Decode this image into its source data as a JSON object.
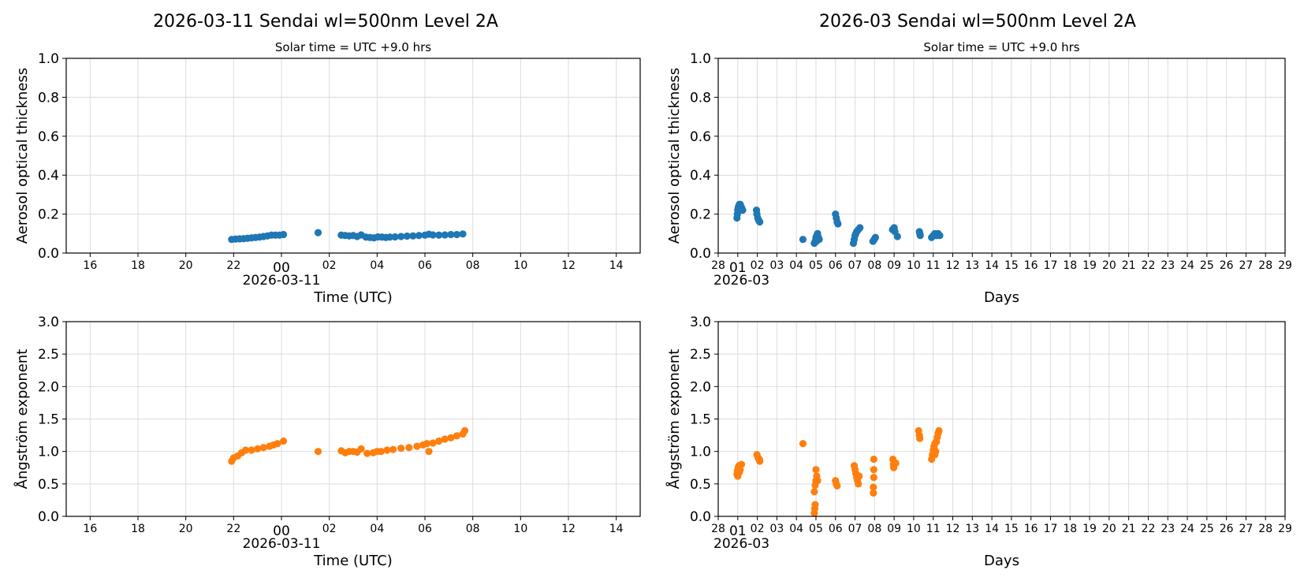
{
  "colors": {
    "aot": "#1f77b4",
    "angstrom": "#ff7f0e",
    "grid": "#dcdcdc"
  },
  "chart_data": [
    {
      "type": "scatter",
      "title": "2026-03-11  Sendai  wl=500nm  Level 2A",
      "subtitle": "Solar time = UTC +9.0 hrs",
      "xlabel": "Time (UTC)",
      "ylabel": "Aerosol optical thickness",
      "xlim": [
        "2026-03-10T15:00",
        "2026-03-11T15:00"
      ],
      "ylim": [
        0,
        1.0
      ],
      "yticks": [
        "0.0",
        "0.2",
        "0.4",
        "0.6",
        "0.8",
        "1.0"
      ],
      "xticks": [
        "16",
        "18",
        "20",
        "22",
        "00",
        "02",
        "04",
        "06",
        "08",
        "10",
        "12",
        "14"
      ],
      "xtick_date_label": "2026-03-11",
      "grid": true,
      "color": "#1f77b4",
      "points": [
        [
          "2026-03-10T21:55",
          0.07
        ],
        [
          "2026-03-10T22:05",
          0.072
        ],
        [
          "2026-03-10T22:15",
          0.073
        ],
        [
          "2026-03-10T22:25",
          0.074
        ],
        [
          "2026-03-10T22:35",
          0.076
        ],
        [
          "2026-03-10T22:45",
          0.078
        ],
        [
          "2026-03-10T22:55",
          0.08
        ],
        [
          "2026-03-10T23:05",
          0.082
        ],
        [
          "2026-03-10T23:15",
          0.085
        ],
        [
          "2026-03-10T23:25",
          0.088
        ],
        [
          "2026-03-10T23:35",
          0.092
        ],
        [
          "2026-03-10T23:45",
          0.092
        ],
        [
          "2026-03-10T23:55",
          0.092
        ],
        [
          "2026-03-11T00:05",
          0.095
        ],
        [
          "2026-03-11T01:32",
          0.105
        ],
        [
          "2026-03-11T02:30",
          0.092
        ],
        [
          "2026-03-11T02:40",
          0.09
        ],
        [
          "2026-03-11T02:50",
          0.088
        ],
        [
          "2026-03-11T03:00",
          0.09
        ],
        [
          "2026-03-11T03:10",
          0.085
        ],
        [
          "2026-03-11T03:20",
          0.093
        ],
        [
          "2026-03-11T03:32",
          0.082
        ],
        [
          "2026-03-11T03:42",
          0.08
        ],
        [
          "2026-03-11T03:52",
          0.078
        ],
        [
          "2026-03-11T04:02",
          0.083
        ],
        [
          "2026-03-11T04:12",
          0.082
        ],
        [
          "2026-03-11T04:22",
          0.08
        ],
        [
          "2026-03-11T04:32",
          0.082
        ],
        [
          "2026-03-11T04:45",
          0.083
        ],
        [
          "2026-03-11T05:00",
          0.085
        ],
        [
          "2026-03-11T05:15",
          0.087
        ],
        [
          "2026-03-11T05:30",
          0.088
        ],
        [
          "2026-03-11T05:45",
          0.09
        ],
        [
          "2026-03-11T06:00",
          0.092
        ],
        [
          "2026-03-11T06:10",
          0.097
        ],
        [
          "2026-03-11T06:20",
          0.093
        ],
        [
          "2026-03-11T06:35",
          0.092
        ],
        [
          "2026-03-11T06:50",
          0.093
        ],
        [
          "2026-03-11T07:05",
          0.095
        ],
        [
          "2026-03-11T07:20",
          0.095
        ],
        [
          "2026-03-11T07:35",
          0.098
        ]
      ]
    },
    {
      "type": "scatter",
      "title": "2026-03  Sendai  wl=500nm  Level 2A",
      "subtitle": "Solar time = UTC +9.0 hrs",
      "xlabel": "Days",
      "ylabel": "Aerosol optical thickness",
      "xlim": [
        "2026-02-28T00:00",
        "2026-03-29T00:00"
      ],
      "ylim": [
        0,
        1.0
      ],
      "yticks": [
        "0.0",
        "0.2",
        "0.4",
        "0.6",
        "0.8",
        "1.0"
      ],
      "xticks": [
        "28",
        "01",
        "02",
        "03",
        "04",
        "05",
        "06",
        "07",
        "08",
        "09",
        "10",
        "11",
        "12",
        "13",
        "14",
        "15",
        "16",
        "17",
        "18",
        "19",
        "20",
        "21",
        "22",
        "23",
        "24",
        "25",
        "26",
        "27",
        "28",
        "29"
      ],
      "xtick_date_label": "2026-03",
      "grid": true,
      "color": "#1f77b4",
      "points": [
        [
          "2026-02-28T23:00",
          0.18
        ],
        [
          "2026-02-28T23:30",
          0.2
        ],
        [
          "2026-03-01T00:00",
          0.22
        ],
        [
          "2026-03-01T00:30",
          0.23
        ],
        [
          "2026-03-01T01:00",
          0.24
        ],
        [
          "2026-03-01T02:00",
          0.25
        ],
        [
          "2026-03-01T03:00",
          0.25
        ],
        [
          "2026-03-01T04:00",
          0.24
        ],
        [
          "2026-03-01T05:00",
          0.23
        ],
        [
          "2026-03-01T06:00",
          0.22
        ],
        [
          "2026-03-01T01:30",
          0.22
        ],
        [
          "2026-03-01T23:00",
          0.22
        ],
        [
          "2026-03-01T23:30",
          0.2
        ],
        [
          "2026-03-02T00:30",
          0.18
        ],
        [
          "2026-03-02T01:30",
          0.17
        ],
        [
          "2026-03-02T03:00",
          0.16
        ],
        [
          "2026-03-04T08:00",
          0.07
        ],
        [
          "2026-03-04T22:00",
          0.05
        ],
        [
          "2026-03-04T23:00",
          0.06
        ],
        [
          "2026-03-05T00:00",
          0.08
        ],
        [
          "2026-03-05T01:00",
          0.09
        ],
        [
          "2026-03-05T02:00",
          0.1
        ],
        [
          "2026-03-05T03:00",
          0.08
        ],
        [
          "2026-03-05T04:00",
          0.07
        ],
        [
          "2026-03-05T00:30",
          0.06
        ],
        [
          "2026-03-06T00:00",
          0.2
        ],
        [
          "2026-03-06T01:00",
          0.18
        ],
        [
          "2026-03-06T02:00",
          0.16
        ],
        [
          "2026-03-06T03:00",
          0.15
        ],
        [
          "2026-03-06T22:00",
          0.05
        ],
        [
          "2026-03-06T23:00",
          0.07
        ],
        [
          "2026-03-07T00:00",
          0.09
        ],
        [
          "2026-03-07T01:00",
          0.1
        ],
        [
          "2026-03-07T02:00",
          0.11
        ],
        [
          "2026-03-07T04:00",
          0.12
        ],
        [
          "2026-03-07T06:00",
          0.13
        ],
        [
          "2026-03-07T22:00",
          0.06
        ],
        [
          "2026-03-07T23:30",
          0.07
        ],
        [
          "2026-03-08T01:00",
          0.08
        ],
        [
          "2026-03-08T22:00",
          0.12
        ],
        [
          "2026-03-09T00:00",
          0.13
        ],
        [
          "2026-03-09T01:00",
          0.11
        ],
        [
          "2026-03-09T04:00",
          0.085
        ],
        [
          "2026-03-10T07:00",
          0.11
        ],
        [
          "2026-03-10T07:30",
          0.1
        ],
        [
          "2026-03-10T08:00",
          0.09
        ],
        [
          "2026-03-10T22:00",
          0.08
        ],
        [
          "2026-03-11T00:00",
          0.09
        ],
        [
          "2026-03-11T02:00",
          0.1
        ],
        [
          "2026-03-11T04:00",
          0.09
        ],
        [
          "2026-03-11T06:00",
          0.1
        ],
        [
          "2026-03-11T08:00",
          0.09
        ]
      ]
    },
    {
      "type": "scatter",
      "xlabel": "Time (UTC)",
      "ylabel": "Ångström exponent",
      "xlim": [
        "2026-03-10T15:00",
        "2026-03-11T15:00"
      ],
      "ylim": [
        0,
        3.0
      ],
      "yticks": [
        "0.0",
        "0.5",
        "1.0",
        "1.5",
        "2.0",
        "2.5",
        "3.0"
      ],
      "xticks": [
        "16",
        "18",
        "20",
        "22",
        "00",
        "02",
        "04",
        "06",
        "08",
        "10",
        "12",
        "14"
      ],
      "xtick_date_label": "2026-03-11",
      "grid": true,
      "color": "#ff7f0e",
      "points": [
        [
          "2026-03-10T21:55",
          0.85
        ],
        [
          "2026-03-10T22:00",
          0.9
        ],
        [
          "2026-03-10T22:10",
          0.93
        ],
        [
          "2026-03-10T22:20",
          0.98
        ],
        [
          "2026-03-10T22:30",
          1.02
        ],
        [
          "2026-03-10T22:45",
          1.02
        ],
        [
          "2026-03-10T23:00",
          1.04
        ],
        [
          "2026-03-10T23:15",
          1.06
        ],
        [
          "2026-03-10T23:30",
          1.08
        ],
        [
          "2026-03-10T23:40",
          1.1
        ],
        [
          "2026-03-10T23:50",
          1.12
        ],
        [
          "2026-03-11T00:05",
          1.16
        ],
        [
          "2026-03-11T01:32",
          1.0
        ],
        [
          "2026-03-11T02:30",
          1.01
        ],
        [
          "2026-03-11T02:40",
          0.98
        ],
        [
          "2026-03-11T02:50",
          1.0
        ],
        [
          "2026-03-11T03:00",
          1.0
        ],
        [
          "2026-03-11T03:10",
          0.99
        ],
        [
          "2026-03-11T03:20",
          1.04
        ],
        [
          "2026-03-11T03:35",
          0.97
        ],
        [
          "2026-03-11T03:50",
          0.98
        ],
        [
          "2026-03-11T04:00",
          1.0
        ],
        [
          "2026-03-11T04:10",
          1.0
        ],
        [
          "2026-03-11T04:25",
          1.02
        ],
        [
          "2026-03-11T04:40",
          1.03
        ],
        [
          "2026-03-11T05:00",
          1.05
        ],
        [
          "2026-03-11T05:20",
          1.06
        ],
        [
          "2026-03-11T05:40",
          1.08
        ],
        [
          "2026-03-11T05:55",
          1.1
        ],
        [
          "2026-03-11T06:05",
          1.12
        ],
        [
          "2026-03-11T06:10",
          1.0
        ],
        [
          "2026-03-11T06:20",
          1.13
        ],
        [
          "2026-03-11T06:35",
          1.16
        ],
        [
          "2026-03-11T06:50",
          1.19
        ],
        [
          "2026-03-11T07:05",
          1.21
        ],
        [
          "2026-03-11T07:20",
          1.24
        ],
        [
          "2026-03-11T07:35",
          1.27
        ],
        [
          "2026-03-11T07:40",
          1.32
        ]
      ]
    },
    {
      "type": "scatter",
      "xlabel": "Days",
      "ylabel": "Ångström exponent",
      "xlim": [
        "2026-02-28T00:00",
        "2026-03-29T00:00"
      ],
      "ylim": [
        0,
        3.0
      ],
      "yticks": [
        "0.0",
        "0.5",
        "1.0",
        "1.5",
        "2.0",
        "2.5",
        "3.0"
      ],
      "xticks": [
        "28",
        "01",
        "02",
        "03",
        "04",
        "05",
        "06",
        "07",
        "08",
        "09",
        "10",
        "11",
        "12",
        "13",
        "14",
        "15",
        "16",
        "17",
        "18",
        "19",
        "20",
        "21",
        "22",
        "23",
        "24",
        "25",
        "26",
        "27",
        "28",
        "29"
      ],
      "xtick_date_label": "2026-03",
      "grid": true,
      "color": "#ff7f0e",
      "points": [
        [
          "2026-02-28T23:00",
          0.65
        ],
        [
          "2026-02-28T23:30",
          0.7
        ],
        [
          "2026-03-01T00:30",
          0.75
        ],
        [
          "2026-03-01T01:30",
          0.78
        ],
        [
          "2026-03-01T03:00",
          0.72
        ],
        [
          "2026-03-01T04:30",
          0.8
        ],
        [
          "2026-03-01T02:00",
          0.68
        ],
        [
          "2026-03-01T00:00",
          0.62
        ],
        [
          "2026-03-01T23:30",
          0.95
        ],
        [
          "2026-03-02T01:00",
          0.9
        ],
        [
          "2026-03-02T02:30",
          0.88
        ],
        [
          "2026-03-02T03:00",
          0.85
        ],
        [
          "2026-03-04T08:00",
          1.12
        ],
        [
          "2026-03-04T22:00",
          0.05
        ],
        [
          "2026-03-04T22:30",
          0.12
        ],
        [
          "2026-03-04T23:00",
          0.18
        ],
        [
          "2026-03-04T22:00",
          0.38
        ],
        [
          "2026-03-04T23:00",
          0.48
        ],
        [
          "2026-03-05T00:00",
          0.55
        ],
        [
          "2026-03-05T01:00",
          0.62
        ],
        [
          "2026-03-05T00:00",
          0.72
        ],
        [
          "2026-03-05T02:00",
          0.55
        ],
        [
          "2026-03-06T00:00",
          0.55
        ],
        [
          "2026-03-06T01:00",
          0.5
        ],
        [
          "2026-03-06T02:00",
          0.47
        ],
        [
          "2026-03-06T23:00",
          0.78
        ],
        [
          "2026-03-07T00:00",
          0.72
        ],
        [
          "2026-03-07T01:00",
          0.66
        ],
        [
          "2026-03-07T02:00",
          0.6
        ],
        [
          "2026-03-07T03:00",
          0.55
        ],
        [
          "2026-03-07T04:00",
          0.5
        ],
        [
          "2026-03-07T05:00",
          0.62
        ],
        [
          "2026-03-07T23:00",
          0.88
        ],
        [
          "2026-03-07T23:00",
          0.72
        ],
        [
          "2026-03-07T23:00",
          0.6
        ],
        [
          "2026-03-07T22:30",
          0.45
        ],
        [
          "2026-03-07T22:30",
          0.36
        ],
        [
          "2026-03-08T22:30",
          0.88
        ],
        [
          "2026-03-08T23:00",
          0.8
        ],
        [
          "2026-03-08T23:30",
          0.75
        ],
        [
          "2026-03-09T02:00",
          0.82
        ],
        [
          "2026-03-10T06:00",
          1.32
        ],
        [
          "2026-03-10T07:00",
          1.25
        ],
        [
          "2026-03-10T07:30",
          1.2
        ],
        [
          "2026-03-10T22:00",
          0.88
        ],
        [
          "2026-03-10T23:00",
          0.95
        ],
        [
          "2026-03-11T00:00",
          1.02
        ],
        [
          "2026-03-11T01:00",
          1.08
        ],
        [
          "2026-03-11T02:00",
          1.12
        ],
        [
          "2026-03-11T03:00",
          1.0
        ],
        [
          "2026-03-11T04:00",
          1.15
        ],
        [
          "2026-03-11T05:00",
          1.22
        ],
        [
          "2026-03-11T06:00",
          1.28
        ],
        [
          "2026-03-11T07:00",
          1.32
        ],
        [
          "2026-03-11T02:00",
          0.95
        ]
      ]
    }
  ]
}
